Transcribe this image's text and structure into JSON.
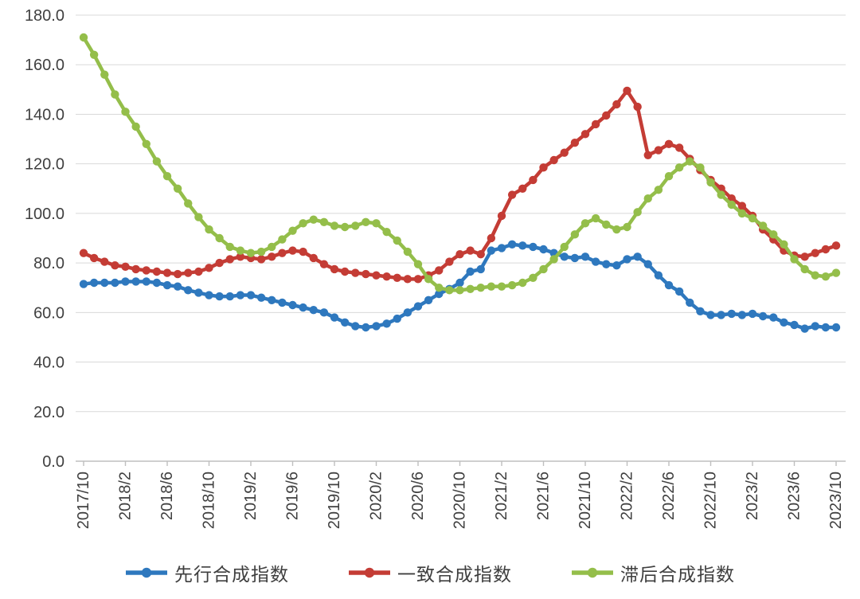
{
  "chart_data": {
    "type": "line",
    "title": "",
    "xlabel": "",
    "ylabel": "",
    "ylim": [
      0,
      180
    ],
    "y_tick_step": 20,
    "y_tick_format": "one-decimal",
    "grid": "horizontal",
    "legend_position": "bottom",
    "x_tick_every": 4,
    "x": [
      "2017/10",
      "2017/11",
      "2017/12",
      "2018/1",
      "2018/2",
      "2018/3",
      "2018/4",
      "2018/5",
      "2018/6",
      "2018/7",
      "2018/8",
      "2018/9",
      "2018/10",
      "2018/11",
      "2018/12",
      "2019/1",
      "2019/2",
      "2019/3",
      "2019/4",
      "2019/5",
      "2019/6",
      "2019/7",
      "2019/8",
      "2019/9",
      "2019/10",
      "2019/11",
      "2019/12",
      "2020/1",
      "2020/2",
      "2020/3",
      "2020/4",
      "2020/5",
      "2020/6",
      "2020/7",
      "2020/8",
      "2020/9",
      "2020/10",
      "2020/11",
      "2020/12",
      "2021/1",
      "2021/2",
      "2021/3",
      "2021/4",
      "2021/5",
      "2021/6",
      "2021/7",
      "2021/8",
      "2021/9",
      "2021/10",
      "2021/11",
      "2021/12",
      "2022/1",
      "2022/2",
      "2022/3",
      "2022/4",
      "2022/5",
      "2022/6",
      "2022/7",
      "2022/8",
      "2022/9",
      "2022/10",
      "2022/11",
      "2022/12",
      "2023/1",
      "2023/2",
      "2023/3",
      "2023/4",
      "2023/5",
      "2023/6",
      "2023/7",
      "2023/8",
      "2023/9",
      "2023/10"
    ],
    "series": [
      {
        "name": "先行合成指数",
        "color": "#2E78BE",
        "values": [
          71.5,
          72,
          72,
          72,
          72.5,
          72.5,
          72.5,
          72,
          71,
          70.5,
          69,
          68,
          67,
          66.5,
          66.5,
          67,
          67,
          66,
          65,
          64,
          63,
          62,
          61,
          60,
          58,
          56,
          54.5,
          54,
          54.5,
          55.5,
          57.5,
          60,
          62.5,
          65,
          67.5,
          69.5,
          72,
          76.5,
          77.5,
          85,
          86,
          87.5,
          87,
          86.5,
          85.5,
          84,
          82.5,
          82,
          82.5,
          80.5,
          79.5,
          79,
          81.5,
          82.5,
          79.5,
          75,
          71,
          68.5,
          64,
          60.5,
          59,
          59,
          59.5,
          59,
          59.5,
          58.5,
          58,
          56,
          55,
          53.5,
          54.5,
          54,
          54
        ]
      },
      {
        "name": "一致合成指数",
        "color": "#C43C35",
        "values": [
          84,
          82,
          80.5,
          79,
          78.5,
          77.5,
          77,
          76.5,
          76,
          75.5,
          76,
          76.5,
          78,
          80,
          81.5,
          82.5,
          82,
          81.5,
          82.5,
          84,
          85,
          84.5,
          82,
          79.5,
          77.5,
          76.5,
          76,
          75.5,
          75,
          74.5,
          74,
          73.5,
          73.5,
          75,
          77,
          80.5,
          83.5,
          85,
          83.5,
          90,
          99,
          107.5,
          110,
          113.5,
          118.5,
          121.5,
          124.5,
          128.5,
          132,
          136,
          139.5,
          144,
          149.5,
          143,
          123.5,
          125.5,
          128,
          126.5,
          122,
          117.5,
          113.5,
          110,
          106,
          103,
          99,
          93.5,
          89.5,
          85,
          83,
          82.5,
          84,
          85.5,
          87
        ]
      },
      {
        "name": "滞后合成指数",
        "color": "#94BE4A",
        "values": [
          171,
          164,
          156,
          148,
          141,
          135,
          128,
          121,
          115,
          110,
          104,
          98.5,
          93.5,
          90,
          86.5,
          85,
          84,
          84.5,
          86.5,
          89.5,
          93,
          96,
          97.5,
          96.5,
          95,
          94.5,
          95,
          96.5,
          96,
          92.5,
          89,
          84.5,
          79.5,
          73.5,
          70,
          69,
          69,
          69.5,
          70,
          70.5,
          70.5,
          71,
          72,
          74,
          77.5,
          81.5,
          86.5,
          91.5,
          96,
          98,
          95.5,
          93.5,
          94.5,
          100.5,
          106,
          109.5,
          115,
          118.5,
          121,
          118.5,
          112.5,
          107.5,
          103.5,
          100,
          98,
          95,
          91.5,
          87.5,
          81.5,
          77.5,
          75,
          74.5,
          76
        ]
      }
    ]
  },
  "colors": {
    "grid": "#d9d9d9",
    "axis": "#bfbfbf",
    "tick_text": "#404040",
    "legend_text": "#3f3f3f",
    "background": "#ffffff"
  }
}
